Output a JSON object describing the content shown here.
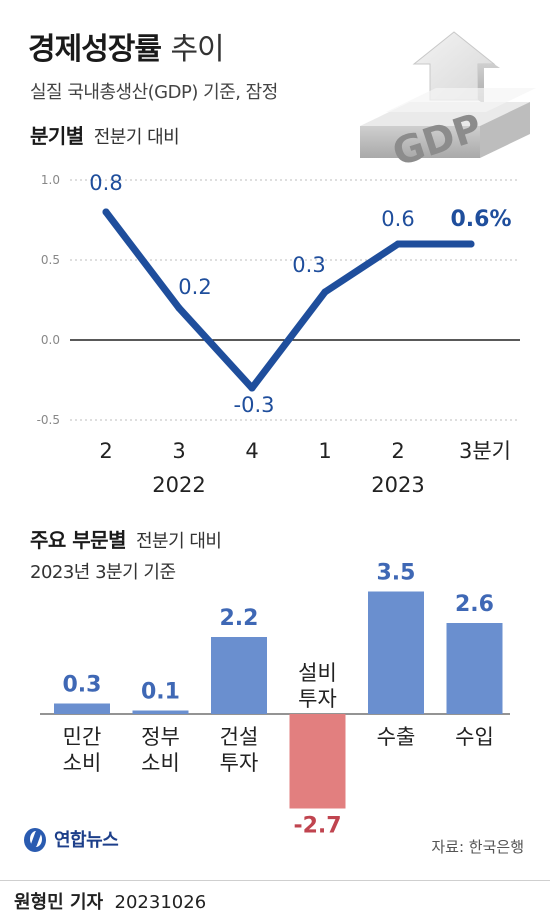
{
  "header": {
    "title": "경제성장률",
    "title_suffix": "추이",
    "subtitle": "실질 국내총생산(GDP) 기준, 잠정",
    "graphic_label": "GDP"
  },
  "quarterly": {
    "heading": "분기별",
    "note": "전분기 대비",
    "chart_data": {
      "type": "line",
      "x": [
        "2",
        "3",
        "4",
        "1",
        "2",
        "3분기"
      ],
      "years": [
        {
          "label": "2022",
          "span": [
            0,
            2
          ]
        },
        {
          "label": "2023",
          "span": [
            3,
            5
          ]
        }
      ],
      "values": [
        0.8,
        0.2,
        -0.3,
        0.3,
        0.6,
        0.6
      ],
      "data_labels": [
        "0.8",
        "0.2",
        "-0.3",
        "0.3",
        "0.6",
        "0.6%"
      ],
      "ylim": [
        -0.5,
        1.0
      ],
      "yticks": [
        1.0,
        0.5,
        0.0,
        -0.5
      ],
      "ytick_labels": [
        "1.0",
        "0.5",
        "0.0",
        "-0.5"
      ],
      "color": "#1f4e9c",
      "grid": "horizontal dotted"
    }
  },
  "sectors": {
    "heading": "주요 부문별",
    "note": "전분기 대비",
    "basis": "2023년 3분기 기준",
    "chart_data": {
      "type": "bar",
      "categories": [
        [
          "민간",
          "소비"
        ],
        [
          "정부",
          "소비"
        ],
        [
          "건설",
          "투자"
        ],
        [
          "설비",
          "투자"
        ],
        [
          "수출"
        ],
        [
          "수입"
        ]
      ],
      "values": [
        0.3,
        0.1,
        2.2,
        -2.7,
        3.5,
        2.6
      ],
      "data_labels": [
        "0.3",
        "0.1",
        "2.2",
        "-2.7",
        "3.5",
        "2.6"
      ],
      "ylim": [
        -2.7,
        3.5
      ],
      "positive_color": "#6a8fcf",
      "negative_color": "#e27f7f",
      "positive_label_color": "#3f68b5",
      "negative_label_color": "#c0444f"
    }
  },
  "footer": {
    "logo": "연합뉴스",
    "source": "자료: 한국은행",
    "reporter": "원형민 기자",
    "date": "20231026"
  }
}
